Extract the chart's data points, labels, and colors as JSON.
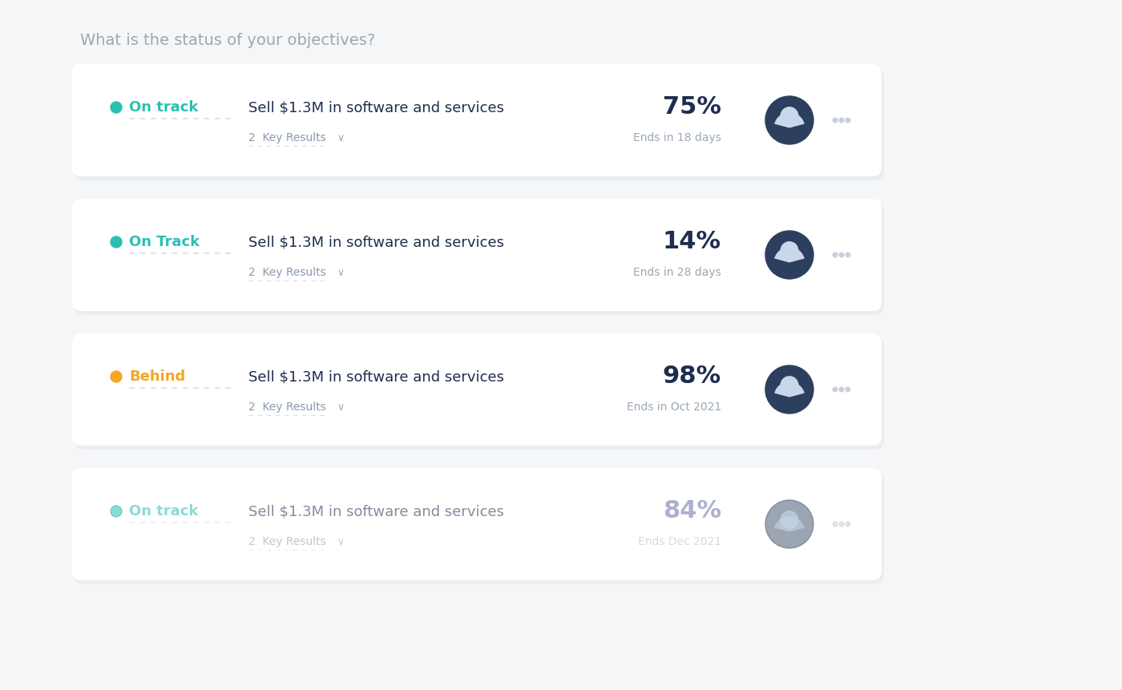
{
  "title": "What is the status of your objectives?",
  "title_color": "#9ba8b5",
  "title_fontsize": 14,
  "background_color": "#f5f6f8",
  "card_color": "#ffffff",
  "rows": [
    {
      "status": "On track",
      "status_color": "#2bbfb3",
      "status_dot_color": "#2bbfb3",
      "objective": "Sell $1.3M in software and services",
      "key_results": "2  Key Results",
      "percentage": "75%",
      "end_date": "Ends in 18 days",
      "avatar_bg": "#2d3f5e",
      "pct_color": "#1e2d4e",
      "date_color": "#9ba8b5",
      "faded": false
    },
    {
      "status": "On Track",
      "status_color": "#2bbfb3",
      "status_dot_color": "#2bbfb3",
      "objective": "Sell $1.3M in software and services",
      "key_results": "2  Key Results",
      "percentage": "14%",
      "end_date": "Ends in 28 days",
      "avatar_bg": "#2d3f5e",
      "pct_color": "#1e2d4e",
      "date_color": "#9ba8b5",
      "faded": false
    },
    {
      "status": "Behind",
      "status_color": "#f5a623",
      "status_dot_color": "#f5a623",
      "objective": "Sell $1.3M in software and services",
      "key_results": "2  Key Results",
      "percentage": "98%",
      "end_date": "Ends in Oct 2021",
      "avatar_bg": "#2d3f5e",
      "pct_color": "#1e2d4e",
      "date_color": "#9ba8b5",
      "faded": false
    },
    {
      "status": "On track",
      "status_color": "#2bbfb3",
      "status_dot_color": "#2bbfb3",
      "objective": "Sell $1.3M in software and services",
      "key_results": "2  Key Results",
      "percentage": "84%",
      "end_date": "Ends Dec 2021",
      "avatar_bg": "#5a6a80",
      "pct_color": "#6b6fa8",
      "date_color": "#b8bcc8",
      "faded": true
    }
  ],
  "card_shadow_color": "#e2e6ea",
  "text_dark": "#1e2d4e",
  "text_medium": "#8a9ab0",
  "text_light": "#b0b8c8",
  "dots_color": "#c8d0da",
  "arrow_color": "#9ba8b5",
  "dashes_color": "#c8d0da",
  "fig_width": 14.0,
  "fig_height": 8.61
}
